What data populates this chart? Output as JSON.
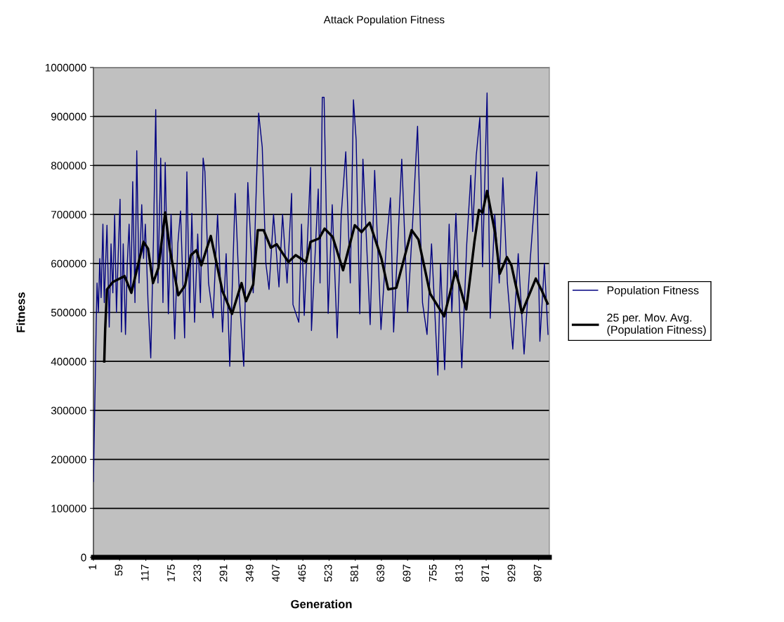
{
  "chart_data": {
    "type": "line",
    "title": "Attack Population Fitness",
    "xlabel": "Generation",
    "ylabel": "Fitness",
    "xlim": [
      1,
      1011
    ],
    "xticks": [
      1,
      59,
      117,
      175,
      233,
      291,
      349,
      407,
      465,
      523,
      581,
      639,
      697,
      755,
      813,
      871,
      929,
      987
    ],
    "ylim": [
      0,
      1000000
    ],
    "yticks": [
      0,
      100000,
      200000,
      300000,
      400000,
      500000,
      600000,
      700000,
      800000,
      900000,
      1000000
    ],
    "grid": "y",
    "legend": "right",
    "series": [
      {
        "name": "Population Fitness",
        "color": "#000080",
        "x": [
          1,
          3,
          5,
          7,
          9,
          12,
          15,
          18,
          22,
          25,
          28,
          31,
          36,
          40,
          44,
          48,
          52,
          56,
          60,
          63,
          67,
          72,
          76,
          80,
          84,
          88,
          93,
          97,
          102,
          108,
          112,
          116,
          122,
          128,
          134,
          139,
          144,
          150,
          155,
          160,
          167,
          173,
          181,
          188,
          194,
          203,
          208,
          214,
          219,
          225,
          232,
          238,
          244,
          248,
          256,
          266,
          276,
          287,
          295,
          303,
          315,
          325,
          334,
          343,
          355,
          360,
          367,
          375,
          383,
          390,
          400,
          412,
          420,
          430,
          440,
          443,
          456,
          462,
          468,
          482,
          484,
          499,
          503,
          508,
          512,
          521,
          530,
          541,
          550,
          560,
          570,
          577,
          583,
          591,
          598,
          614,
          624,
          638,
          650,
          659,
          666,
          684,
          697,
          708,
          719,
          730,
          740,
          750,
          764,
          770,
          779,
          789,
          795,
          804,
          817,
          828,
          837,
          841,
          849,
          857,
          863,
          873,
          880,
          890,
          900,
          908,
          918,
          930,
          942,
          955,
          968,
          983,
          990,
          1000,
          1008
        ],
        "values": [
          155000,
          260000,
          360000,
          470000,
          560000,
          500000,
          610000,
          530000,
          680000,
          520000,
          600000,
          678000,
          470000,
          640000,
          540000,
          700000,
          500000,
          620000,
          731000,
          460000,
          640000,
          455000,
          600000,
          680000,
          540000,
          767000,
          520000,
          830000,
          560000,
          720000,
          610000,
          680000,
          520000,
          407000,
          650000,
          914000,
          560000,
          815000,
          520000,
          806000,
          497000,
          700000,
          446000,
          640000,
          707000,
          448000,
          787000,
          500000,
          702000,
          480000,
          660000,
          520000,
          815000,
          787000,
          560000,
          489000,
          700000,
          460000,
          620000,
          390000,
          743000,
          520000,
          390000,
          765000,
          540000,
          700000,
          907000,
          837000,
          600000,
          547000,
          700000,
          552000,
          700000,
          560000,
          743000,
          516000,
          480000,
          680000,
          494000,
          796000,
          463000,
          752000,
          560000,
          939000,
          939000,
          498000,
          720000,
          448000,
          700000,
          828000,
          560000,
          934000,
          852000,
          497000,
          813000,
          475000,
          790000,
          465000,
          640000,
          734000,
          460000,
          813000,
          500000,
          680000,
          880000,
          520000,
          455000,
          640000,
          372000,
          600000,
          383000,
          680000,
          500000,
          702000,
          387000,
          640000,
          780000,
          665000,
          820000,
          898000,
          593000,
          948000,
          488000,
          700000,
          560000,
          775000,
          560000,
          425000,
          620000,
          415000,
          600000,
          787000,
          441000,
          600000,
          455000
        ]
      },
      {
        "name": "25 per. Mov. Avg. (Population Fitness)",
        "color": "#000000",
        "x": [
          25,
          27,
          31,
          44,
          70,
          85,
          112,
          122,
          133,
          145,
          160,
          170,
          189,
          204,
          217,
          229,
          240,
          261,
          287,
          308,
          329,
          339,
          355,
          365,
          378,
          394,
          407,
          433,
          449,
          472,
          482,
          501,
          513,
          531,
          554,
          580,
          595,
          613,
          639,
          654,
          672,
          706,
          721,
          747,
          778,
          803,
          827,
          845,
          855,
          863,
          873,
          891,
          901,
          917,
          927,
          950,
          981,
          994,
          1007
        ],
        "values": [
          400000,
          465000,
          547000,
          562000,
          574000,
          540000,
          644000,
          630000,
          560000,
          591000,
          704000,
          630000,
          535000,
          555000,
          617000,
          627000,
          596000,
          656000,
          543000,
          497000,
          560000,
          523000,
          557000,
          668000,
          668000,
          632000,
          639000,
          603000,
          617000,
          603000,
          644000,
          651000,
          671000,
          654000,
          586000,
          678000,
          664000,
          683000,
          610000,
          547000,
          550000,
          668000,
          649000,
          538000,
          492000,
          584000,
          506000,
          644000,
          709000,
          704000,
          748000,
          661000,
          579000,
          613000,
          596000,
          499000,
          569000,
          545000,
          518000
        ]
      }
    ]
  }
}
